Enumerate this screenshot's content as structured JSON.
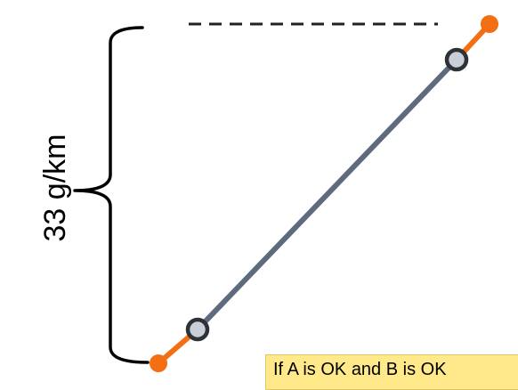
{
  "bracket": {
    "label": "33 g/km"
  },
  "note": {
    "text": "If A is OK and B is OK"
  },
  "colors": {
    "main_line": "#5e6b7e",
    "handle": "#f26f14",
    "node_fill": "#c9ced8",
    "node_stroke": "#2e3135",
    "note_bg": "#ffe98a"
  }
}
